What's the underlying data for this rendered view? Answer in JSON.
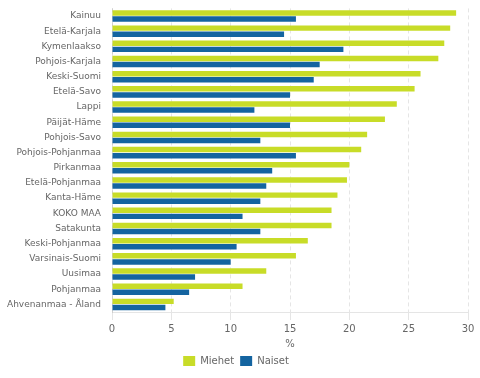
{
  "chart_data": {
    "type": "bar",
    "orientation": "horizontal",
    "categories": [
      "Kainuu",
      "Etelä-Karjala",
      "Kymenlaakso",
      "Pohjois-Karjala",
      "Keski-Suomi",
      "Etelä-Savo",
      "Lappi",
      "Päijät-Häme",
      "Pohjois-Savo",
      "Pohjois-Pohjanmaa",
      "Pirkanmaa",
      "Etelä-Pohjanmaa",
      "Kanta-Häme",
      "KOKO MAA",
      "Satakunta",
      "Keski-Pohjanmaa",
      "Varsinais-Suomi",
      "Uusimaa",
      "Pohjanmaa",
      "Ahvenanmaa - Åland"
    ],
    "series": [
      {
        "name": "Miehet",
        "color": "#c8dc28",
        "values": [
          29.0,
          28.5,
          28.0,
          27.5,
          26.0,
          25.5,
          24.0,
          23.0,
          21.5,
          21.0,
          20.0,
          19.8,
          19.0,
          18.5,
          18.5,
          16.5,
          15.5,
          13.0,
          11.0,
          5.2
        ]
      },
      {
        "name": "Naiset",
        "color": "#1464a0",
        "values": [
          15.5,
          14.5,
          19.5,
          17.5,
          17.0,
          15.0,
          12.0,
          15.0,
          12.5,
          15.5,
          13.5,
          13.0,
          12.5,
          11.0,
          12.5,
          10.5,
          10.0,
          7.0,
          6.5,
          4.5
        ]
      }
    ],
    "xlabel": "%",
    "xlim": [
      0,
      30
    ],
    "xticks": [
      0,
      5,
      10,
      15,
      20,
      25,
      30
    ],
    "grid": true,
    "legend": "bottom"
  }
}
